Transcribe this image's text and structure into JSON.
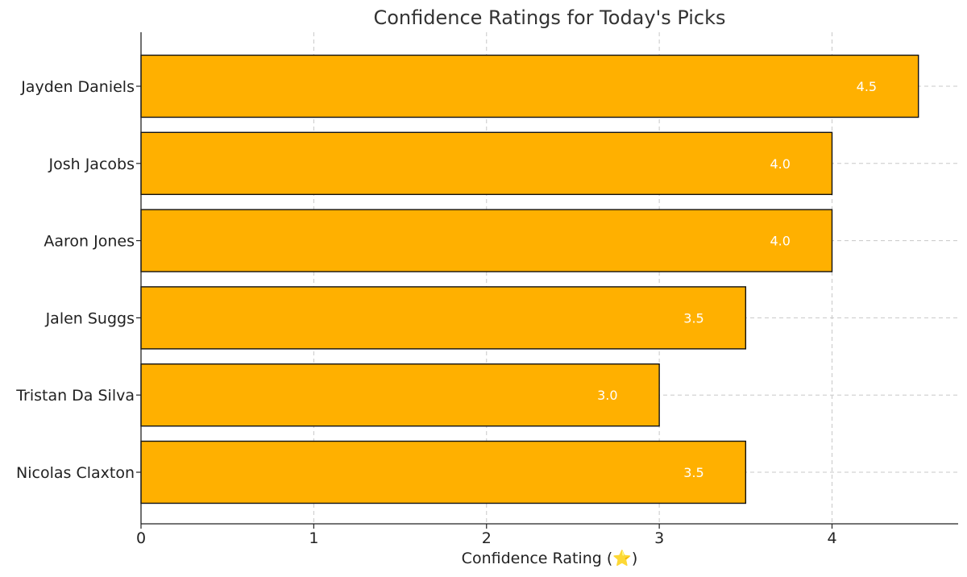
{
  "chart_data": {
    "type": "bar",
    "orientation": "horizontal",
    "title": "Confidence Ratings for Today's Picks",
    "xlabel": "Confidence Rating (⭐)",
    "ylabel": "",
    "categories": [
      "Jayden Daniels",
      "Josh Jacobs",
      "Aaron Jones",
      "Jalen Suggs",
      "Tristan Da Silva",
      "Nicolas Claxton"
    ],
    "values": [
      4.5,
      4.0,
      4.0,
      3.5,
      3.0,
      3.5
    ],
    "value_labels": [
      "4.5",
      "4.0",
      "4.0",
      "3.5",
      "3.0",
      "3.5"
    ],
    "xlim": [
      0,
      4.73
    ],
    "x_ticks": [
      0,
      1,
      2,
      3,
      4
    ],
    "x_tick_labels": [
      "0",
      "1",
      "2",
      "3",
      "4"
    ],
    "grid": true,
    "bar_color": "#FFB000",
    "bar_edge_color": "#111111",
    "value_label_color": "#ffffff"
  }
}
